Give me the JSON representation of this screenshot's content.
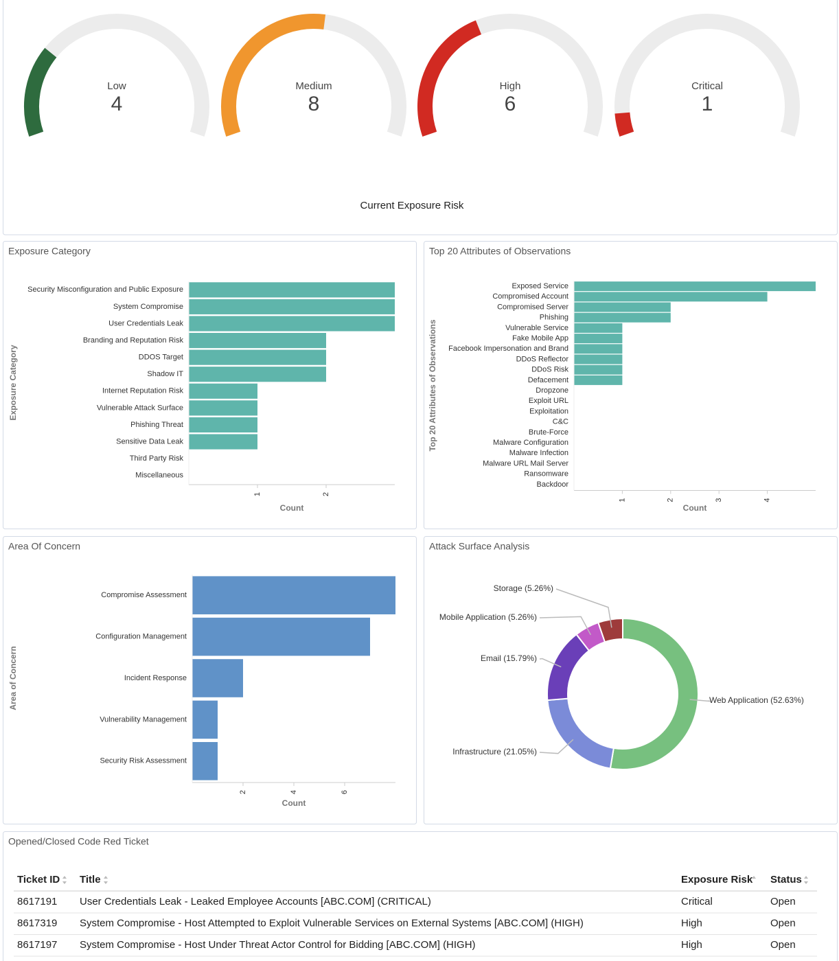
{
  "chart_data": [
    {
      "type": "gauge",
      "title": "Current Exposure Risk",
      "categories": [
        "Low",
        "Medium",
        "High",
        "Critical"
      ],
      "values": [
        4,
        8,
        6,
        1
      ],
      "colors": [
        "#2e6b3e",
        "#f0962e",
        "#d12a22",
        "#d12a22"
      ],
      "ylim": [
        0,
        15
      ]
    },
    {
      "type": "bar",
      "horizontal": true,
      "title": "Exposure Category",
      "ylabel": "Exposure Category",
      "xlabel": "Count",
      "categories": [
        "Security Misconfiguration and Public Exposure",
        "System Compromise",
        "User Credentials Leak",
        "Branding and Reputation Risk",
        "DDOS Target",
        "Shadow IT",
        "Internet Reputation Risk",
        "Vulnerable Attack Surface",
        "Phishing Threat",
        "Sensitive Data Leak",
        "Third Party Risk",
        "Miscellaneous"
      ],
      "values": [
        3,
        3,
        3,
        2,
        2,
        2,
        1,
        1,
        1,
        1,
        0,
        0
      ],
      "color": "#5fb5ab",
      "xlim": [
        0,
        3
      ],
      "xticks": [
        1,
        2
      ]
    },
    {
      "type": "bar",
      "horizontal": true,
      "title": "Top 20 Attributes of Observations",
      "ylabel": "Top 20 Attributes of Observations",
      "xlabel": "Count",
      "categories": [
        "Exposed Service",
        "Compromised Account",
        "Compromised Server",
        "Phishing",
        "Vulnerable Service",
        "Fake Mobile App",
        "Facebook Impersonation and Brand",
        "DDoS Reflector",
        "DDoS Risk",
        "Defacement",
        "Dropzone",
        "Exploit URL",
        "Exploitation",
        "C&C",
        "Brute-Force",
        "Malware Configuration",
        "Malware Infection",
        "Malware URL Mail Server",
        "Ransomware",
        "Backdoor"
      ],
      "values": [
        5,
        4,
        2,
        2,
        1,
        1,
        1,
        1,
        1,
        1,
        0,
        0,
        0,
        0,
        0,
        0,
        0,
        0,
        0,
        0
      ],
      "color": "#5fb5ab",
      "xlim": [
        0,
        5
      ],
      "xticks": [
        1,
        2,
        3,
        4
      ]
    },
    {
      "type": "bar",
      "horizontal": true,
      "title": "Area Of Concern",
      "ylabel": "Area of Concern",
      "xlabel": "Count",
      "categories": [
        "Compromise Assessment",
        "Configuration Management",
        "Incident Response",
        "Vulnerability Management",
        "Security Risk Assessment"
      ],
      "values": [
        8,
        7,
        2,
        1,
        1
      ],
      "color": "#6092c8",
      "xlim": [
        0,
        8
      ],
      "xticks": [
        2,
        4,
        6
      ]
    },
    {
      "type": "donut",
      "title": "Attack Surface Analysis",
      "value_labels": [
        "Web Application (52.63%)",
        "Infrastructure (21.05%)",
        "Email (15.79%)",
        "Mobile Application (5.26%)",
        "Storage (5.26%)"
      ],
      "values": [
        52.63,
        21.05,
        15.79,
        5.26,
        5.26
      ],
      "colors": [
        "#77c07f",
        "#7b8bd8",
        "#6a3fb8",
        "#c25ac8",
        "#9e3b3b"
      ]
    }
  ],
  "table": {
    "title": "Opened/Closed Code Red Ticket",
    "columns": [
      "Ticket ID",
      "Title",
      "Exposure Risk",
      "Status"
    ],
    "rows": [
      [
        "8617191",
        "User Credentials Leak - Leaked Employee Accounts [ABC.COM] (CRITICAL)",
        "Critical",
        "Open"
      ],
      [
        "8617319",
        "System Compromise - Host Attempted to Exploit Vulnerable Services on External Systems [ABC.COM] (HIGH)",
        "High",
        "Open"
      ],
      [
        "8617197",
        "System Compromise - Host Under Threat Actor Control for Bidding [ABC.COM] (HIGH)",
        "High",
        "Open"
      ]
    ]
  }
}
